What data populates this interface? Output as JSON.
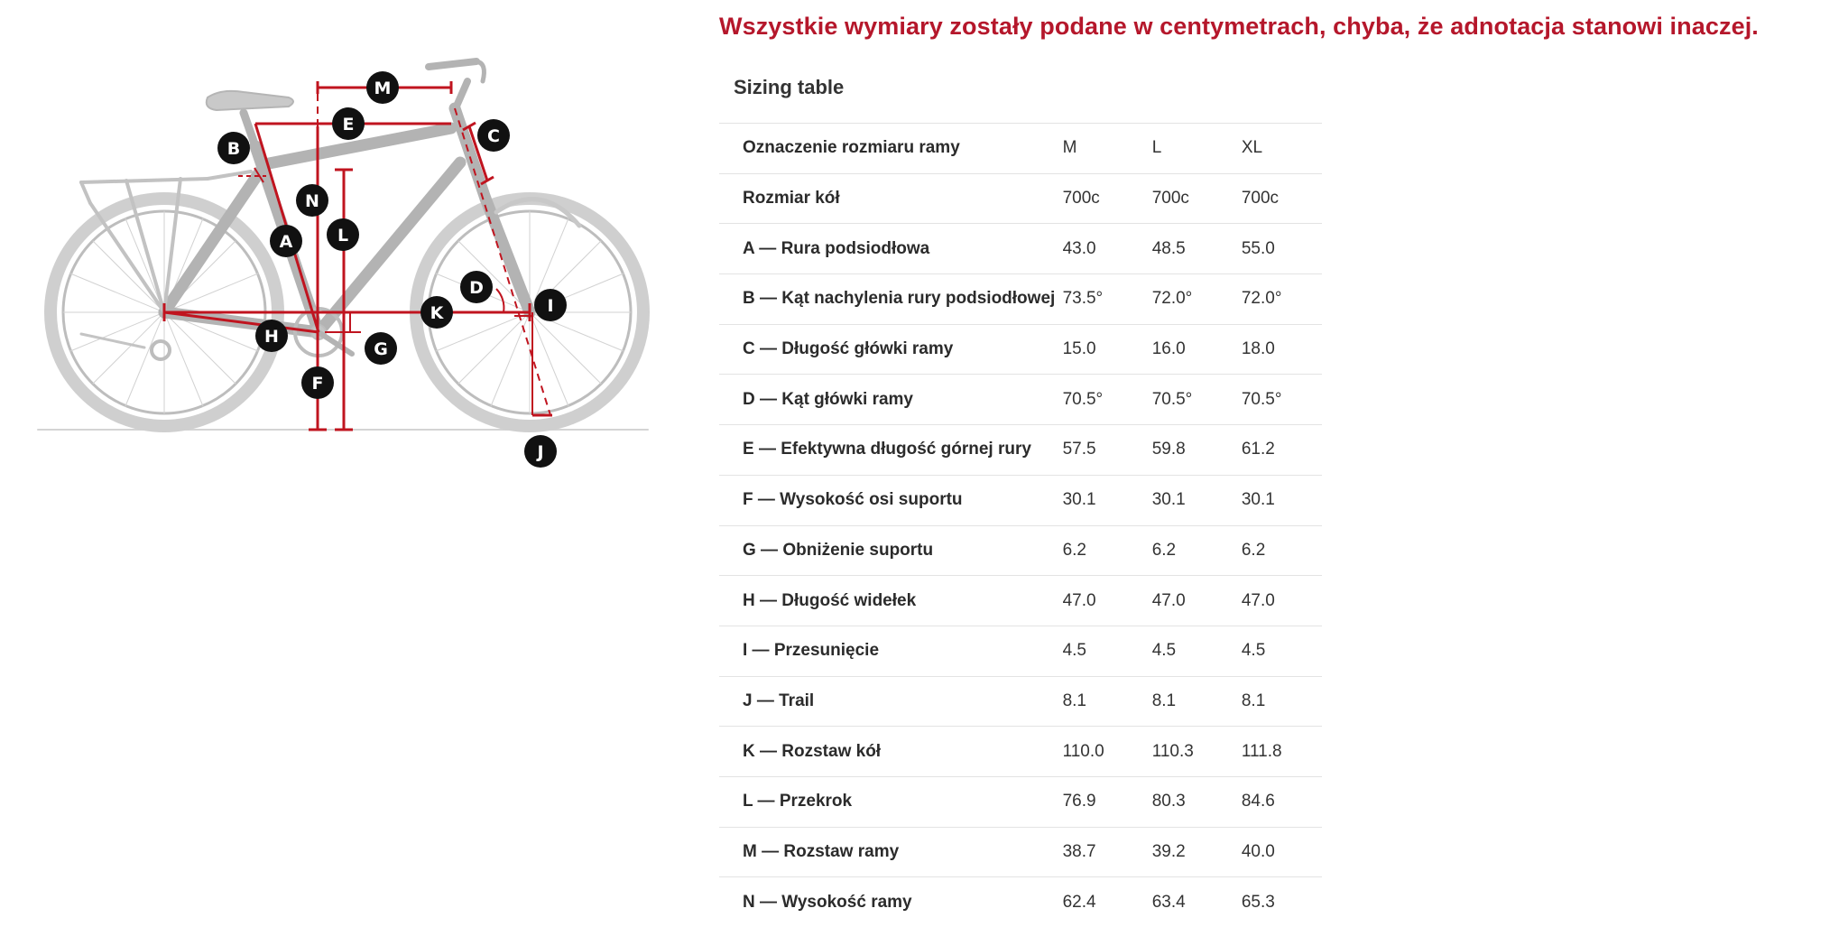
{
  "notice": "Wszystkie wymiary zostały podane w centymetrach, chyba, że adnotacja stanowi inaczej.",
  "table_title": "Sizing table",
  "diagram": {
    "labels": [
      "M",
      "E",
      "C",
      "B",
      "N",
      "L",
      "A",
      "D",
      "I",
      "K",
      "H",
      "G",
      "F",
      "J"
    ],
    "accent_color": "#c0141f",
    "frame_color": "#bdbdbd"
  },
  "table": {
    "header": {
      "label": "Oznaczenie rozmiaru ramy",
      "sizes": [
        "M",
        "L",
        "XL"
      ]
    },
    "rows": [
      {
        "label": "Rozmiar kół",
        "values": [
          "700c",
          "700c",
          "700c"
        ]
      },
      {
        "label": "A — Rura podsiodłowa",
        "values": [
          "43.0",
          "48.5",
          "55.0"
        ]
      },
      {
        "label": "B — Kąt nachylenia rury podsiodłowej",
        "values": [
          "73.5°",
          "72.0°",
          "72.0°"
        ]
      },
      {
        "label": "C — Długość główki ramy",
        "values": [
          "15.0",
          "16.0",
          "18.0"
        ]
      },
      {
        "label": "D — Kąt główki ramy",
        "values": [
          "70.5°",
          "70.5°",
          "70.5°"
        ]
      },
      {
        "label": "E — Efektywna długość górnej rury",
        "values": [
          "57.5",
          "59.8",
          "61.2"
        ]
      },
      {
        "label": "F — Wysokość osi suportu",
        "values": [
          "30.1",
          "30.1",
          "30.1"
        ]
      },
      {
        "label": "G — Obniżenie suportu",
        "values": [
          "6.2",
          "6.2",
          "6.2"
        ]
      },
      {
        "label": "H — Długość widełek",
        "values": [
          "47.0",
          "47.0",
          "47.0"
        ]
      },
      {
        "label": "I — Przesunięcie",
        "values": [
          "4.5",
          "4.5",
          "4.5"
        ]
      },
      {
        "label": "J — Trail",
        "values": [
          "8.1",
          "8.1",
          "8.1"
        ]
      },
      {
        "label": "K — Rozstaw kół",
        "values": [
          "110.0",
          "110.3",
          "111.8"
        ]
      },
      {
        "label": "L — Przekrok",
        "values": [
          "76.9",
          "80.3",
          "84.6"
        ]
      },
      {
        "label": "M — Rozstaw ramy",
        "values": [
          "38.7",
          "39.2",
          "40.0"
        ]
      },
      {
        "label": "N — Wysokość ramy",
        "values": [
          "62.4",
          "63.4",
          "65.3"
        ]
      }
    ]
  }
}
